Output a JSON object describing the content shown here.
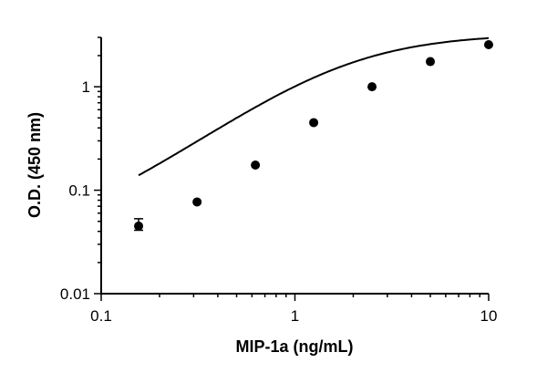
{
  "chart_data": {
    "type": "scatter",
    "title": "",
    "xlabel": "MIP-1a (ng/mL)",
    "ylabel": "O.D. (450 nm)",
    "x_scale": "log",
    "y_scale": "log",
    "xlim": [
      0.1,
      10
    ],
    "ylim": [
      0.01,
      3
    ],
    "x_ticks": [
      {
        "value": 0.1,
        "label": "0.1"
      },
      {
        "value": 1,
        "label": "1"
      },
      {
        "value": 10,
        "label": "10"
      }
    ],
    "y_ticks": [
      {
        "value": 0.01,
        "label": "0.01"
      },
      {
        "value": 0.1,
        "label": "0.1"
      },
      {
        "value": 1,
        "label": "1"
      }
    ],
    "grid": false,
    "series": [
      {
        "marker_color": "#000000",
        "points": [
          {
            "x": 0.156,
            "y": 0.045,
            "y_err_low": 0.041,
            "y_err_high": 0.053
          },
          {
            "x": 0.3125,
            "y": 0.077
          },
          {
            "x": 0.625,
            "y": 0.175
          },
          {
            "x": 1.25,
            "y": 0.45
          },
          {
            "x": 2.5,
            "y": 1.0
          },
          {
            "x": 5,
            "y": 1.75
          },
          {
            "x": 10,
            "y": 2.55
          }
        ]
      }
    ],
    "fit_curve": {
      "type": "4PL",
      "bottom": 0.029,
      "top": 3.25,
      "ec50": 1.85,
      "hill": 1.35
    }
  }
}
